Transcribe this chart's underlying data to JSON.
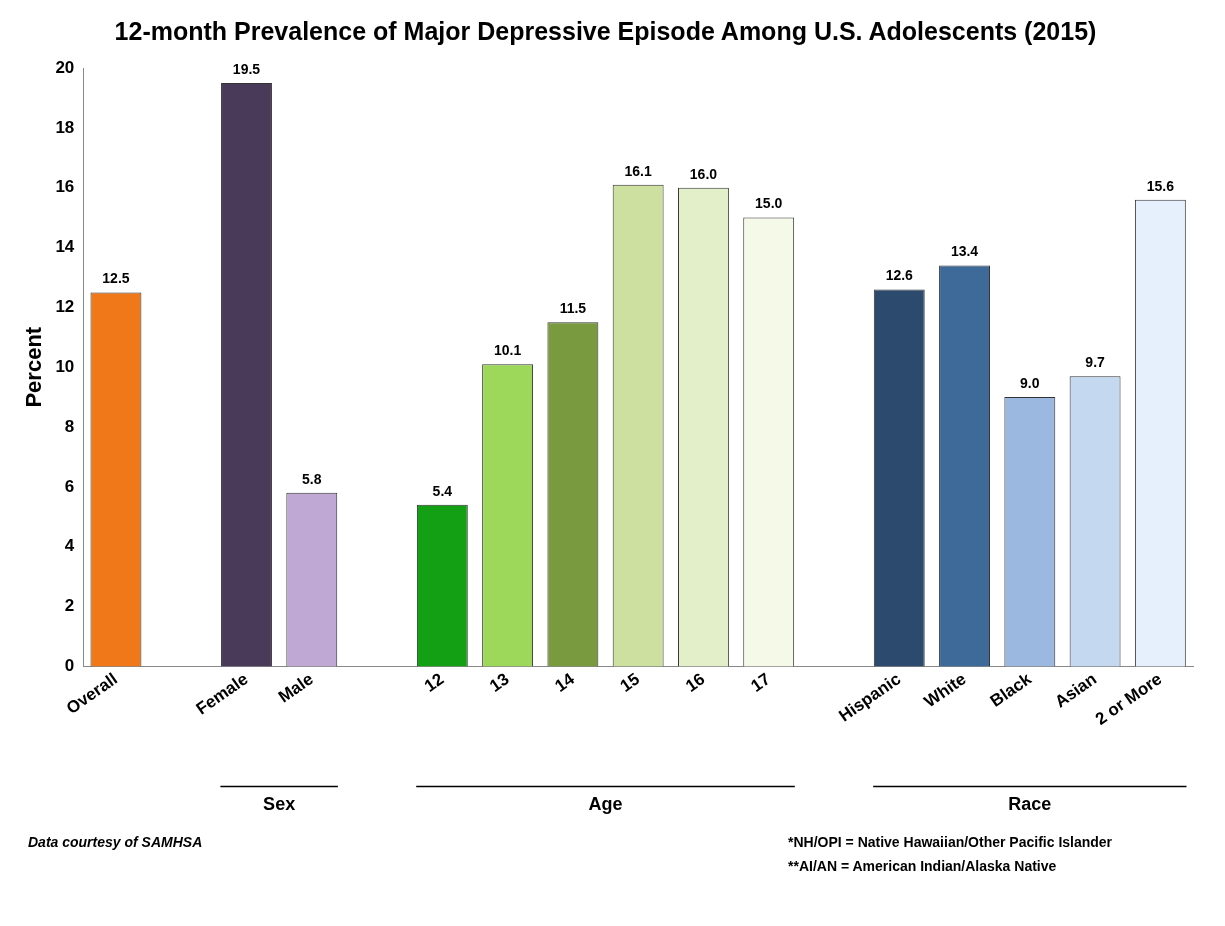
{
  "chart_data": {
    "type": "bar",
    "title": "12-month Prevalence of Major Depressive Episode Among U.S. Adolescents (2015)",
    "ylabel": "Percent",
    "categories": [
      "Overall",
      null,
      "Female",
      "Male",
      null,
      "12",
      "13",
      "14",
      "15",
      "16",
      "17",
      null,
      "Hispanic",
      "White",
      "Black",
      "Asian",
      "2 or More"
    ],
    "values": [
      12.5,
      null,
      19.5,
      5.8,
      null,
      5.4,
      10.1,
      11.5,
      16.1,
      16.0,
      15.0,
      null,
      12.6,
      13.4,
      9.0,
      9.7,
      15.6
    ],
    "colors": [
      "#f07818",
      null,
      "#4a3a5a",
      "#bfa8d4",
      null,
      "#14a014",
      "#9ed85a",
      "#7a9a40",
      "#cde0a0",
      "#e2efc8",
      "#f5fae8",
      null,
      "#2c4a6e",
      "#3e6a9a",
      "#9ab8e0",
      "#c4d8f0",
      "#e6f0fc"
    ],
    "value_labels": [
      "12.5",
      null,
      "19.5",
      "5.8",
      null,
      "5.4",
      "10.1",
      "11.5",
      "16.1",
      "16.0",
      "15.0",
      null,
      "12.6",
      "13.4",
      "9.0",
      "9.7",
      "15.6"
    ],
    "ylim": [
      0,
      20
    ],
    "yticks": [
      0,
      2,
      4,
      6,
      8,
      10,
      12,
      14,
      16,
      18,
      20
    ],
    "grid": false,
    "legend": false,
    "annotations": [
      "Sex",
      "Age",
      "Race",
      "Data courtesy of SAMHSA",
      "*NH/OPI = Native Hawaiian/Other Pacific Islander",
      "**AI/AN = American Indian/Alaska Native"
    ]
  }
}
